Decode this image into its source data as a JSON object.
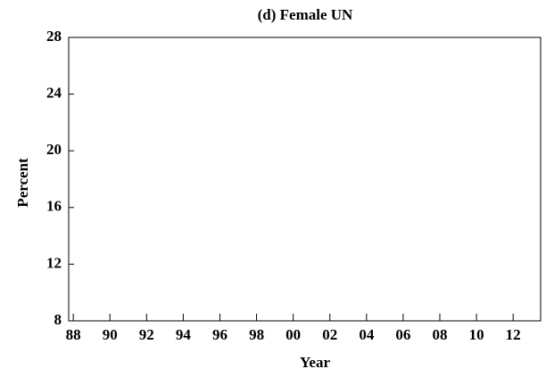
{
  "chart_data": {
    "type": "line",
    "title": "(d) Female UN",
    "x_label": "Year",
    "y_label": "Percent",
    "xlim": [
      1987.75,
      2013.5
    ],
    "xticks": [
      {
        "value": 1988,
        "label": "88"
      },
      {
        "value": 1990,
        "label": "90"
      },
      {
        "value": 1992,
        "label": "92"
      },
      {
        "value": 1994,
        "label": "94"
      },
      {
        "value": 1996,
        "label": "96"
      },
      {
        "value": 1998,
        "label": "98"
      },
      {
        "value": 2000,
        "label": "00"
      },
      {
        "value": 2002,
        "label": "02"
      },
      {
        "value": 2004,
        "label": "04"
      },
      {
        "value": 2006,
        "label": "06"
      },
      {
        "value": 2008,
        "label": "08"
      },
      {
        "value": 2010,
        "label": "10"
      },
      {
        "value": 2012,
        "label": "12"
      }
    ],
    "ylim": [
      8,
      28
    ],
    "yticks": [
      8,
      12,
      16,
      20,
      24,
      28
    ],
    "grid": false
  }
}
